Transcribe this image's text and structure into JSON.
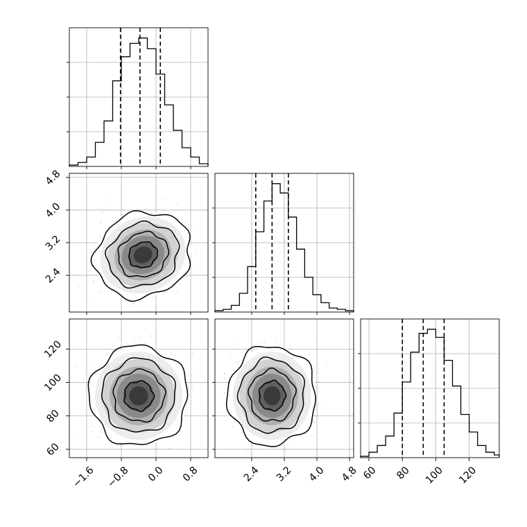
{
  "chart_data": {
    "type": "corner",
    "grid": true,
    "parameters": [
      {
        "range": [
          -2.0,
          1.2
        ],
        "ticks": [
          -1.6,
          -0.8,
          0.0,
          0.8
        ],
        "tick_labels": [
          "−1.6",
          "−0.8",
          "0.0",
          "0.8"
        ],
        "quantiles": [
          -0.82,
          -0.37,
          0.1
        ]
      },
      {
        "range": [
          1.5,
          4.9
        ],
        "ticks": [
          2.4,
          3.2,
          4.0,
          4.8
        ],
        "tick_labels": [
          "2.4",
          "3.2",
          "4.0",
          "4.8"
        ],
        "quantiles": [
          2.5,
          2.9,
          3.3
        ]
      },
      {
        "range": [
          55,
          138
        ],
        "ticks": [
          60,
          80,
          100,
          120
        ],
        "tick_labels": [
          "60",
          "80",
          "100",
          "120"
        ],
        "quantiles": [
          80,
          92.5,
          105
        ]
      }
    ],
    "histograms": [
      {
        "bin_edges": [
          -2.0,
          -1.8,
          -1.6,
          -1.4,
          -1.2,
          -1.0,
          -0.8,
          -0.6,
          -0.4,
          -0.2,
          0.0,
          0.2,
          0.4,
          0.6,
          0.8,
          1.0,
          1.2
        ],
        "counts": [
          1,
          3,
          7,
          18,
          34,
          64,
          82,
          92,
          96,
          88,
          69,
          46,
          27,
          14,
          7,
          2
        ]
      },
      {
        "bin_edges": [
          1.5,
          1.7,
          1.9,
          2.1,
          2.3,
          2.5,
          2.7,
          2.9,
          3.1,
          3.3,
          3.5,
          3.7,
          3.9,
          4.1,
          4.3,
          4.5,
          4.7,
          4.9
        ],
        "counts": [
          1,
          2,
          5,
          14,
          34,
          60,
          83,
          96,
          89,
          71,
          47,
          26,
          13,
          7,
          3,
          2,
          1
        ]
      },
      {
        "bin_edges": [
          55,
          60,
          65,
          70,
          75,
          80,
          85,
          90,
          95,
          100,
          105,
          110,
          115,
          120,
          125,
          130,
          135,
          138
        ],
        "counts": [
          1,
          4,
          9,
          16,
          33,
          56,
          78,
          92,
          95,
          89,
          72,
          53,
          32,
          19,
          9,
          4,
          2
        ]
      }
    ],
    "pairs": [
      {
        "x": 0,
        "y": 1,
        "center": [
          -0.3,
          2.9
        ],
        "spread": [
          0.42,
          0.38
        ],
        "tilt_deg": 24,
        "contour_levels": [
          0.4,
          0.7,
          1.0,
          1.35
        ]
      },
      {
        "x": 0,
        "y": 2,
        "center": [
          -0.4,
          92
        ],
        "spread": [
          0.42,
          11
        ],
        "tilt_deg": 0,
        "contour_levels": [
          0.4,
          0.7,
          1.0,
          1.35
        ]
      },
      {
        "x": 1,
        "y": 2,
        "center": [
          2.9,
          92
        ],
        "spread": [
          0.4,
          11
        ],
        "tilt_deg": 0,
        "contour_levels": [
          0.4,
          0.7,
          1.0,
          1.35
        ]
      }
    ]
  }
}
